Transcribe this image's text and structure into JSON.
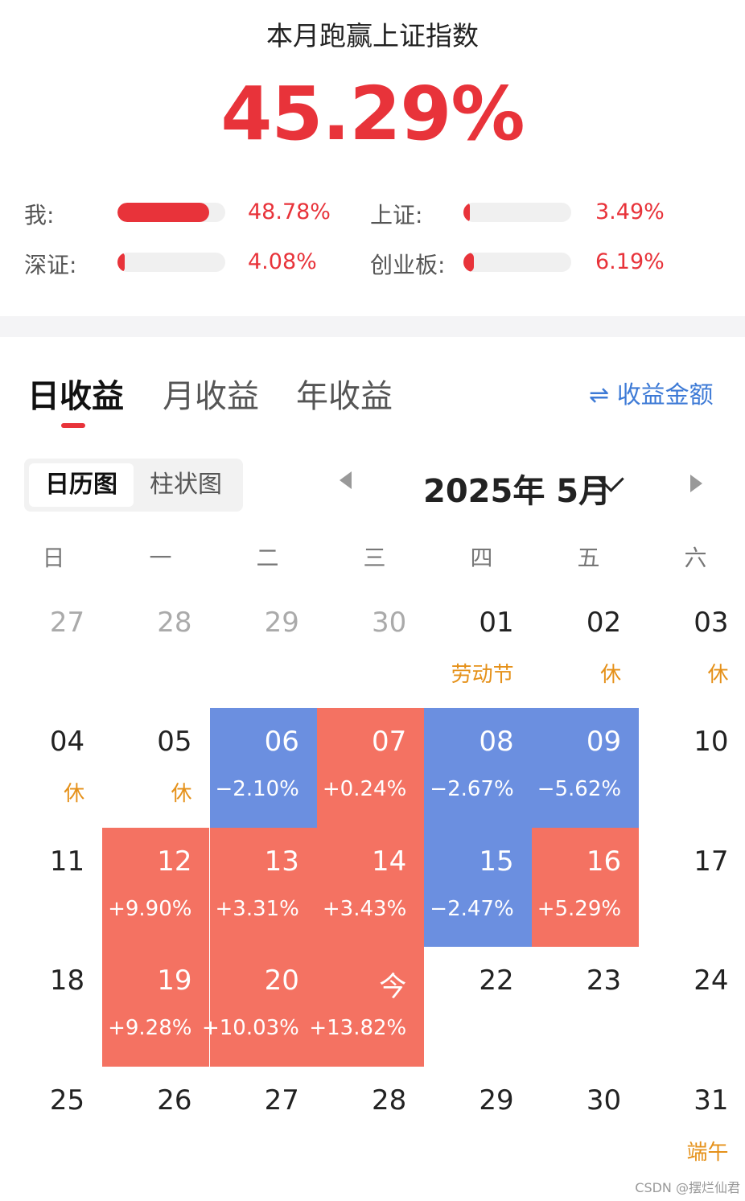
{
  "header": {
    "title": "本月跑赢上证指数",
    "outperform_value": "45.29%"
  },
  "comparisons": [
    {
      "label": "我:",
      "value": "48.78%",
      "fill": 0.85
    },
    {
      "label": "上证:",
      "value": "3.49%",
      "fill": 0.06
    },
    {
      "label": "深证:",
      "value": "4.08%",
      "fill": 0.07
    },
    {
      "label": "创业板:",
      "value": "6.19%",
      "fill": 0.1
    }
  ],
  "tabs": [
    {
      "label": "日收益",
      "active": true
    },
    {
      "label": "月收益",
      "active": false
    },
    {
      "label": "年收益",
      "active": false
    }
  ],
  "amount_toggle": {
    "icon": "swap-arrows-icon",
    "symbol": "⇌",
    "label": "收益金额"
  },
  "view_toggle": {
    "calendar": "日历图",
    "bar": "柱状图",
    "active": "calendar"
  },
  "month_nav": {
    "label": "2025年 5月"
  },
  "weekdays": [
    "日",
    "一",
    "二",
    "三",
    "四",
    "五",
    "六"
  ],
  "calendar": {
    "colors": {
      "up": "#f47262",
      "down": "#6b8fe0",
      "holiday": "#e5911a",
      "accent": "#e8333a",
      "link": "#3d7ad6"
    },
    "weeks": [
      [
        {
          "d": "27",
          "other": true
        },
        {
          "d": "28",
          "other": true
        },
        {
          "d": "29",
          "other": true
        },
        {
          "d": "30",
          "other": true
        },
        {
          "d": "01",
          "sub": "劳动节",
          "type": "holiday"
        },
        {
          "d": "02",
          "sub": "休",
          "type": "holiday"
        },
        {
          "d": "03",
          "sub": "休",
          "type": "holiday"
        }
      ],
      [
        {
          "d": "04",
          "sub": "休",
          "type": "holiday"
        },
        {
          "d": "05",
          "sub": "休",
          "type": "holiday"
        },
        {
          "d": "06",
          "sub": "−2.10%",
          "type": "down"
        },
        {
          "d": "07",
          "sub": "+0.24%",
          "type": "up"
        },
        {
          "d": "08",
          "sub": "−2.67%",
          "type": "down"
        },
        {
          "d": "09",
          "sub": "−5.62%",
          "type": "down"
        },
        {
          "d": "10"
        }
      ],
      [
        {
          "d": "11"
        },
        {
          "d": "12",
          "sub": "+9.90%",
          "type": "up"
        },
        {
          "d": "13",
          "sub": "+3.31%",
          "type": "up"
        },
        {
          "d": "14",
          "sub": "+3.43%",
          "type": "up"
        },
        {
          "d": "15",
          "sub": "−2.47%",
          "type": "down"
        },
        {
          "d": "16",
          "sub": "+5.29%",
          "type": "up"
        },
        {
          "d": "17"
        }
      ],
      [
        {
          "d": "18"
        },
        {
          "d": "19",
          "sub": "+9.28%",
          "type": "up"
        },
        {
          "d": "20",
          "sub": "+10.03%",
          "type": "up"
        },
        {
          "d": "今",
          "sub": "+13.82%",
          "type": "up"
        },
        {
          "d": "22"
        },
        {
          "d": "23"
        },
        {
          "d": "24"
        }
      ],
      [
        {
          "d": "25"
        },
        {
          "d": "26"
        },
        {
          "d": "27"
        },
        {
          "d": "28"
        },
        {
          "d": "29"
        },
        {
          "d": "30"
        },
        {
          "d": "31",
          "sub": "端午",
          "type": "holiday"
        }
      ]
    ]
  },
  "watermark": "CSDN @摆烂仙君"
}
